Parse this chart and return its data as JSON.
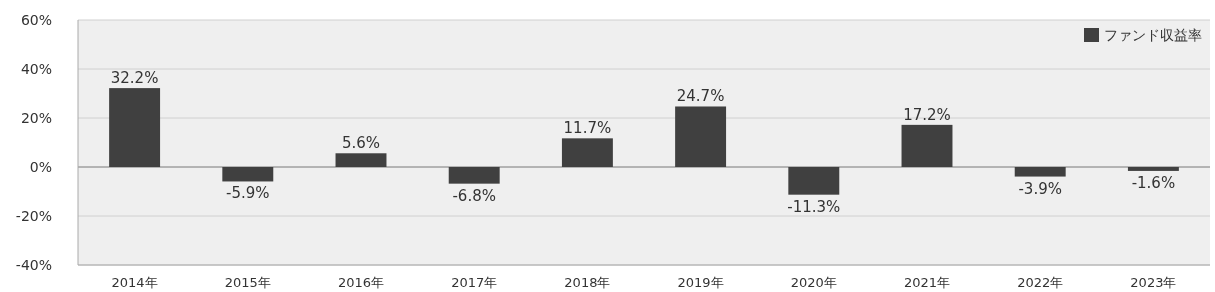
{
  "chart_data": {
    "type": "bar",
    "categories": [
      "2014年",
      "2015年",
      "2016年",
      "2017年",
      "2018年",
      "2019年",
      "2020年",
      "2021年",
      "2022年",
      "2023年"
    ],
    "series": [
      {
        "name": "ファンド収益率",
        "color": "#404040",
        "values": [
          32.2,
          -5.9,
          5.6,
          -6.8,
          11.7,
          24.7,
          -11.3,
          17.2,
          -3.9,
          -1.6
        ],
        "value_labels": [
          "32.2%",
          "-5.9%",
          "5.6%",
          "-6.8%",
          "11.7%",
          "24.7%",
          "-11.3%",
          "17.2%",
          "-3.9%",
          "-1.6%"
        ]
      }
    ],
    "ylim": [
      -40,
      60
    ],
    "yticks": [
      {
        "value": -40,
        "label": "-40%"
      },
      {
        "value": -20,
        "label": "-20%"
      },
      {
        "value": 0,
        "label": "0%"
      },
      {
        "value": 20,
        "label": "20%"
      },
      {
        "value": 40,
        "label": "40%"
      },
      {
        "value": 60,
        "label": "60%"
      }
    ],
    "grid": "y",
    "legend": "top right"
  }
}
